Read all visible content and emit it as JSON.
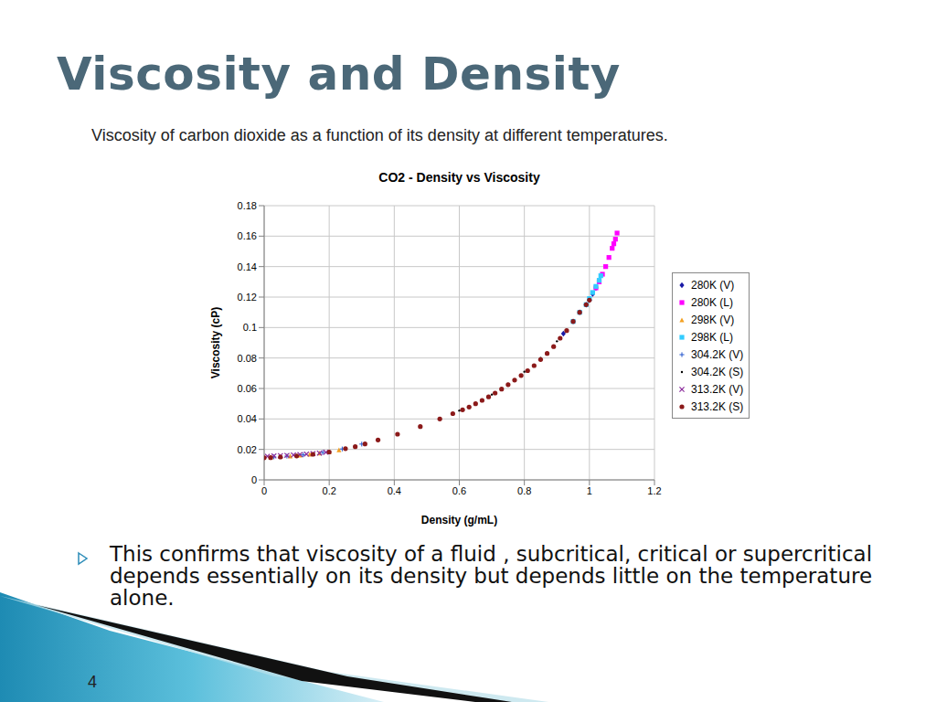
{
  "slide": {
    "title": "Viscosity and Density",
    "caption": "Viscosity of carbon dioxide as a function of its density at different temperatures.",
    "bullet_lines": [
      "This confirms that viscosity of a fluid , subcritical, critical or supercritical",
      "depends essentially on its density but depends little on the temperature",
      "alone."
    ],
    "page_number": "4"
  },
  "chart_data": {
    "type": "scatter",
    "title": "CO2 - Density vs Viscosity",
    "x_label": "Density (g/mL)",
    "y_label": "Viscosity (cP)",
    "xlim": [
      0,
      1.2
    ],
    "xticks": [
      0,
      0.2,
      0.4,
      0.6,
      0.8,
      1,
      1.2
    ],
    "ylim": [
      0,
      0.18
    ],
    "yticks": [
      0,
      0.02,
      0.04,
      0.06,
      0.08,
      0.1,
      0.12,
      0.14,
      0.16,
      0.18
    ],
    "grid": true,
    "legend": "right",
    "series": [
      {
        "name": "280K (V)",
        "color": "#1a1aa6",
        "marker": "diamond",
        "x": [
          0.92,
          0.95,
          0.97,
          0.99,
          1.0,
          1.01,
          1.02
        ],
        "values": [
          0.096,
          0.104,
          0.11,
          0.115,
          0.118,
          0.122,
          0.126
        ]
      },
      {
        "name": "280K (L)",
        "color": "#ff00ff",
        "marker": "square",
        "x": [
          1.02,
          1.03,
          1.04,
          1.05,
          1.06,
          1.07,
          1.075,
          1.08,
          1.085
        ],
        "values": [
          0.126,
          0.13,
          0.135,
          0.14,
          0.146,
          0.152,
          0.155,
          0.158,
          0.162
        ]
      },
      {
        "name": "298K (V)",
        "color": "#f4a020",
        "marker": "triangle",
        "x": [
          0.02,
          0.05,
          0.08,
          0.11,
          0.14,
          0.17,
          0.2,
          0.23
        ],
        "values": [
          0.015,
          0.0153,
          0.0157,
          0.0162,
          0.0168,
          0.0176,
          0.0185,
          0.0197
        ]
      },
      {
        "name": "298K (L)",
        "color": "#33ccff",
        "marker": "square",
        "x": [
          0.95,
          0.97,
          0.99,
          1.0,
          1.01,
          1.02,
          1.03,
          1.035
        ],
        "values": [
          0.104,
          0.11,
          0.115,
          0.119,
          0.123,
          0.127,
          0.131,
          0.134
        ]
      },
      {
        "name": "304.2K (V)",
        "color": "#2255cc",
        "marker": "plus",
        "x": [
          0.03,
          0.07,
          0.12,
          0.18,
          0.24,
          0.3
        ],
        "values": [
          0.0151,
          0.0156,
          0.0164,
          0.018,
          0.0203,
          0.0235
        ]
      },
      {
        "name": "304.2K (S)",
        "color": "#000000",
        "marker": "dot",
        "x": [
          0.6,
          0.65,
          0.7,
          0.75,
          0.8,
          0.85,
          0.9
        ],
        "values": [
          0.0455,
          0.05,
          0.056,
          0.063,
          0.071,
          0.08,
          0.091
        ]
      },
      {
        "name": "313.2K (V)",
        "color": "#8b2c9b",
        "marker": "x",
        "x": [
          0.01,
          0.03,
          0.05,
          0.07,
          0.09,
          0.11,
          0.13,
          0.15,
          0.17,
          0.19
        ],
        "values": [
          0.0155,
          0.0157,
          0.0159,
          0.0161,
          0.0163,
          0.0166,
          0.0169,
          0.0172,
          0.0176,
          0.0181
        ]
      },
      {
        "name": "313.2K (S)",
        "color": "#8b1a1a",
        "marker": "circle",
        "x": [
          0.0,
          0.02,
          0.05,
          0.1,
          0.15,
          0.2,
          0.25,
          0.28,
          0.31,
          0.35,
          0.41,
          0.48,
          0.54,
          0.58,
          0.61,
          0.63,
          0.65,
          0.67,
          0.69,
          0.71,
          0.73,
          0.75,
          0.77,
          0.79,
          0.81,
          0.83,
          0.85,
          0.87,
          0.89,
          0.91,
          0.93,
          0.95,
          0.97,
          0.99,
          1.0
        ],
        "values": [
          0.0145,
          0.0146,
          0.015,
          0.0157,
          0.0168,
          0.0183,
          0.0205,
          0.0218,
          0.0236,
          0.0262,
          0.03,
          0.035,
          0.04,
          0.0435,
          0.046,
          0.0478,
          0.05,
          0.0522,
          0.0545,
          0.057,
          0.0596,
          0.0625,
          0.0655,
          0.0685,
          0.0717,
          0.075,
          0.079,
          0.083,
          0.0875,
          0.093,
          0.098,
          0.104,
          0.11,
          0.115,
          0.118
        ]
      }
    ]
  }
}
